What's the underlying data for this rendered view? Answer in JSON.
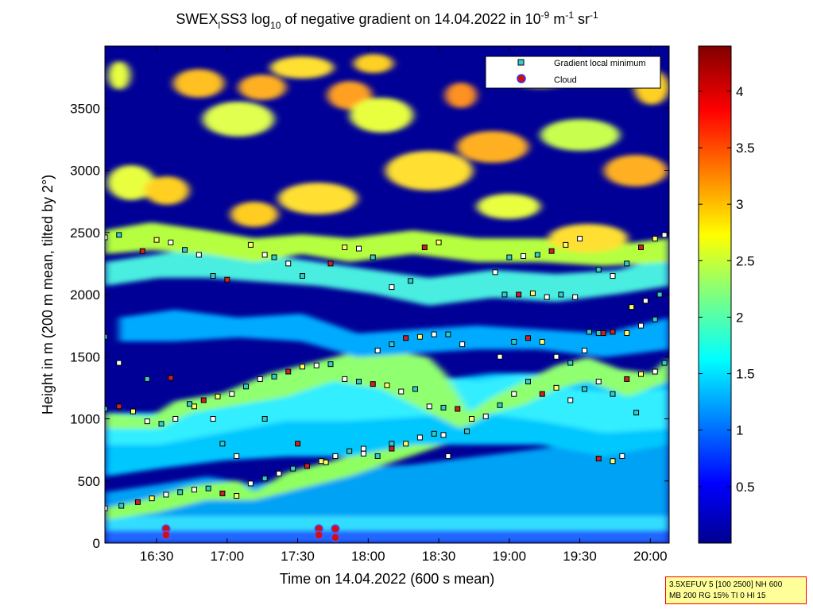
{
  "chart_data": {
    "type": "heatmap",
    "title": {
      "prefix": "SWEX",
      "sub1": "l",
      "mid": "SS3 log",
      "sub2": "10",
      "mid2": " of negative gradient on 14.04.2022 in 10",
      "sup1": "-9",
      "mid3": " m",
      "sup2": "-1",
      "mid4": " sr",
      "sup3": "-1"
    },
    "xlabel": "Time on 14.04.2022 (600 s mean)",
    "ylabel": "Height in m (200 m mean, tilted by 2°)",
    "xlim_minutes": [
      968,
      1208
    ],
    "ylim": [
      0,
      4000
    ],
    "x_ticks": [
      {
        "label": "16:30",
        "minutes": 990
      },
      {
        "label": "17:00",
        "minutes": 1020
      },
      {
        "label": "17:30",
        "minutes": 1050
      },
      {
        "label": "18:00",
        "minutes": 1080
      },
      {
        "label": "18:30",
        "minutes": 1110
      },
      {
        "label": "19:00",
        "minutes": 1140
      },
      {
        "label": "19:30",
        "minutes": 1170
      },
      {
        "label": "20:00",
        "minutes": 1200
      }
    ],
    "y_ticks": [
      {
        "label": "0",
        "value": 0
      },
      {
        "label": "500",
        "value": 500
      },
      {
        "label": "1000",
        "value": 1000
      },
      {
        "label": "1500",
        "value": 1500
      },
      {
        "label": "2000",
        "value": 2000
      },
      {
        "label": "2500",
        "value": 2500
      },
      {
        "label": "3000",
        "value": 3000
      },
      {
        "label": "3500",
        "value": 3500
      }
    ],
    "colorbar": {
      "range": [
        0,
        4.4
      ],
      "ticks": [
        {
          "label": "0.5",
          "value": 0.5
        },
        {
          "label": "1",
          "value": 1
        },
        {
          "label": "1.5",
          "value": 1.5
        },
        {
          "label": "2",
          "value": 2
        },
        {
          "label": "2.5",
          "value": 2.5
        },
        {
          "label": "3",
          "value": 3
        },
        {
          "label": "3.5",
          "value": 3.5
        },
        {
          "label": "4",
          "value": 4
        }
      ]
    },
    "legend": {
      "placement": "top-right",
      "items": [
        {
          "label": "Gradient local minimum",
          "marker": "square",
          "color": "#33cccc"
        },
        {
          "label": "Cloud",
          "marker": "circle",
          "color": "#cc1111"
        }
      ]
    },
    "series": [
      {
        "name": "Gradient local minimum",
        "points": [
          [
            968,
            280
          ],
          [
            975,
            300
          ],
          [
            982,
            330
          ],
          [
            988,
            360
          ],
          [
            994,
            390
          ],
          [
            1000,
            410
          ],
          [
            1006,
            430
          ],
          [
            1012,
            440
          ],
          [
            1018,
            400
          ],
          [
            1024,
            380
          ],
          [
            1030,
            480
          ],
          [
            1036,
            520
          ],
          [
            1042,
            560
          ],
          [
            1048,
            600
          ],
          [
            1054,
            620
          ],
          [
            1060,
            660
          ],
          [
            1066,
            700
          ],
          [
            1072,
            740
          ],
          [
            1078,
            760
          ],
          [
            1084,
            700
          ],
          [
            1090,
            760
          ],
          [
            1096,
            800
          ],
          [
            1102,
            850
          ],
          [
            1108,
            880
          ],
          [
            1112,
            870
          ],
          [
            968,
            1080
          ],
          [
            974,
            1100
          ],
          [
            980,
            1060
          ],
          [
            986,
            980
          ],
          [
            992,
            960
          ],
          [
            998,
            1000
          ],
          [
            1004,
            1120
          ],
          [
            1010,
            1150
          ],
          [
            1016,
            1180
          ],
          [
            1022,
            1200
          ],
          [
            1028,
            1260
          ],
          [
            1034,
            1320
          ],
          [
            1040,
            1340
          ],
          [
            1046,
            1380
          ],
          [
            1052,
            1420
          ],
          [
            1058,
            1430
          ],
          [
            1064,
            1440
          ],
          [
            1070,
            1320
          ],
          [
            1076,
            1300
          ],
          [
            1082,
            1280
          ],
          [
            1088,
            1270
          ],
          [
            1094,
            1220
          ],
          [
            1100,
            1240
          ],
          [
            1106,
            1100
          ],
          [
            1112,
            1090
          ],
          [
            1118,
            1080
          ],
          [
            1124,
            1000
          ],
          [
            1130,
            1020
          ],
          [
            1136,
            1110
          ],
          [
            1142,
            1200
          ],
          [
            1148,
            1300
          ],
          [
            1154,
            1200
          ],
          [
            1160,
            1250
          ],
          [
            1166,
            1150
          ],
          [
            1172,
            1240
          ],
          [
            1178,
            1300
          ],
          [
            1184,
            1200
          ],
          [
            1190,
            1320
          ],
          [
            1196,
            1360
          ],
          [
            1202,
            1380
          ],
          [
            1206,
            1450
          ],
          [
            1136,
            1500
          ],
          [
            1142,
            1620
          ],
          [
            1148,
            1650
          ],
          [
            1154,
            1620
          ],
          [
            1160,
            1500
          ],
          [
            1166,
            1450
          ],
          [
            1172,
            1550
          ],
          [
            1178,
            1690
          ],
          [
            1184,
            1700
          ],
          [
            1190,
            1690
          ],
          [
            1196,
            1750
          ],
          [
            1202,
            1800
          ],
          [
            1084,
            1550
          ],
          [
            1090,
            1600
          ],
          [
            1096,
            1650
          ],
          [
            1102,
            1660
          ],
          [
            1108,
            1680
          ],
          [
            1114,
            1680
          ],
          [
            1120,
            1600
          ],
          [
            1138,
            2000
          ],
          [
            1144,
            2000
          ],
          [
            1150,
            2010
          ],
          [
            1156,
            1980
          ],
          [
            1162,
            2000
          ],
          [
            1168,
            1980
          ],
          [
            1174,
            1700
          ],
          [
            1180,
            1690
          ],
          [
            1192,
            1900
          ],
          [
            1198,
            1950
          ],
          [
            1204,
            2000
          ],
          [
            968,
            2460
          ],
          [
            974,
            2480
          ],
          [
            984,
            2350
          ],
          [
            990,
            2440
          ],
          [
            996,
            2420
          ],
          [
            1002,
            2360
          ],
          [
            1008,
            2320
          ],
          [
            1014,
            2150
          ],
          [
            1020,
            2120
          ],
          [
            1030,
            2400
          ],
          [
            1036,
            2320
          ],
          [
            1040,
            2300
          ],
          [
            1046,
            2250
          ],
          [
            1052,
            2150
          ],
          [
            1064,
            2250
          ],
          [
            1070,
            2380
          ],
          [
            1076,
            2370
          ],
          [
            1082,
            2300
          ],
          [
            1090,
            2060
          ],
          [
            1098,
            2110
          ],
          [
            1104,
            2380
          ],
          [
            1110,
            2420
          ],
          [
            1134,
            2180
          ],
          [
            1140,
            2300
          ],
          [
            1146,
            2310
          ],
          [
            1152,
            2320
          ],
          [
            1158,
            2350
          ],
          [
            1164,
            2400
          ],
          [
            1170,
            2450
          ],
          [
            1178,
            2200
          ],
          [
            1184,
            2150
          ],
          [
            1190,
            2250
          ],
          [
            1196,
            2380
          ],
          [
            1202,
            2450
          ],
          [
            1206,
            2480
          ],
          [
            968,
            1660
          ],
          [
            974,
            1450
          ],
          [
            986,
            1320
          ],
          [
            996,
            1330
          ],
          [
            1006,
            1100
          ],
          [
            1014,
            1000
          ],
          [
            1018,
            800
          ],
          [
            1024,
            700
          ],
          [
            1036,
            1000
          ],
          [
            1050,
            800
          ],
          [
            1062,
            650
          ],
          [
            1078,
            720
          ],
          [
            1090,
            800
          ],
          [
            1114,
            700
          ],
          [
            1122,
            900
          ],
          [
            1178,
            680
          ],
          [
            1184,
            660
          ],
          [
            1188,
            700
          ],
          [
            1194,
            1050
          ]
        ]
      },
      {
        "name": "Cloud",
        "points": [
          [
            994,
            115
          ],
          [
            994,
            65
          ],
          [
            1059,
            115
          ],
          [
            1059,
            65
          ],
          [
            1066,
            115
          ],
          [
            1066,
            45
          ]
        ]
      }
    ]
  },
  "info_box": {
    "line1": "3.5XEFUV 5 [100 2500] NH 600",
    "line2": "MB 200 RG 15% TI 0 HI 15"
  }
}
